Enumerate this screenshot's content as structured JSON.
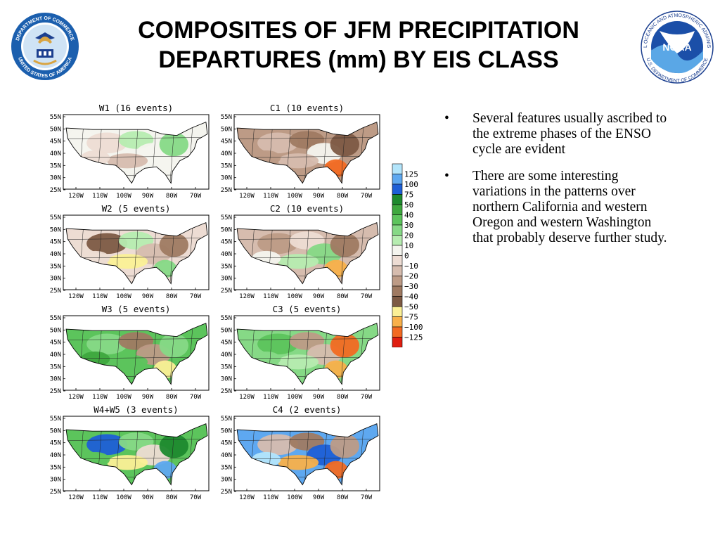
{
  "title": "COMPOSITES OF JFM PRECIPITATION DEPARTURES (mm) BY EIS CLASS",
  "logos": {
    "left": {
      "icon": "department-of-commerce-seal-icon",
      "text": "DEPARTMENT OF COMMERCE · UNITED STATES OF AMERICA"
    },
    "right": {
      "icon": "noaa-logo-icon",
      "center_text": "NOAA",
      "ring_top": "NATIONAL OCEANIC AND ATMOSPHERIC ADMINISTRATION",
      "ring_bottom": "U.S. DEPARTMENT OF COMMERCE"
    }
  },
  "panels": [
    {
      "id": "w1",
      "title": "W1 (16 events)"
    },
    {
      "id": "c1",
      "title": "C1 (10 events)"
    },
    {
      "id": "w2",
      "title": "W2 (5 events)"
    },
    {
      "id": "c2",
      "title": "C2 (10 events)"
    },
    {
      "id": "w3",
      "title": "W3 (5 events)"
    },
    {
      "id": "c3",
      "title": "C3 (5 events)"
    },
    {
      "id": "w45",
      "title": "W4+W5 (3 events)"
    },
    {
      "id": "c4",
      "title": "C4 (2 events)"
    }
  ],
  "axes": {
    "lat_labels": [
      "55N",
      "50N",
      "45N",
      "40N",
      "35N",
      "30N",
      "25N"
    ],
    "lon_labels": [
      "120W",
      "110W",
      "100W",
      "90W",
      "80W",
      "70W"
    ]
  },
  "legend": {
    "levels": [
      "125",
      "100",
      "75",
      "50",
      "40",
      "30",
      "20",
      "10",
      "0",
      "−10",
      "−20",
      "−30",
      "−40",
      "−50",
      "−75",
      "−100",
      "−125"
    ],
    "colors": [
      "#b3e5fb",
      "#5ea8f0",
      "#1e5fd6",
      "#1e8a2e",
      "#3ea83e",
      "#5cc45c",
      "#86d986",
      "#b6ecb0",
      "#f4f4ee",
      "#eddcd3",
      "#d6bcae",
      "#bd9b86",
      "#9f7a62",
      "#7d5a44",
      "#fbf096",
      "#f8b04a",
      "#f26a22",
      "#e01e10"
    ]
  },
  "bullets": [
    "Several features usually ascribed to the extreme phases of the ENSO cycle are evident",
    "There are some interesting variations in the patterns over northern California and western Oregon and western Washington that probably deserve further study."
  ]
}
